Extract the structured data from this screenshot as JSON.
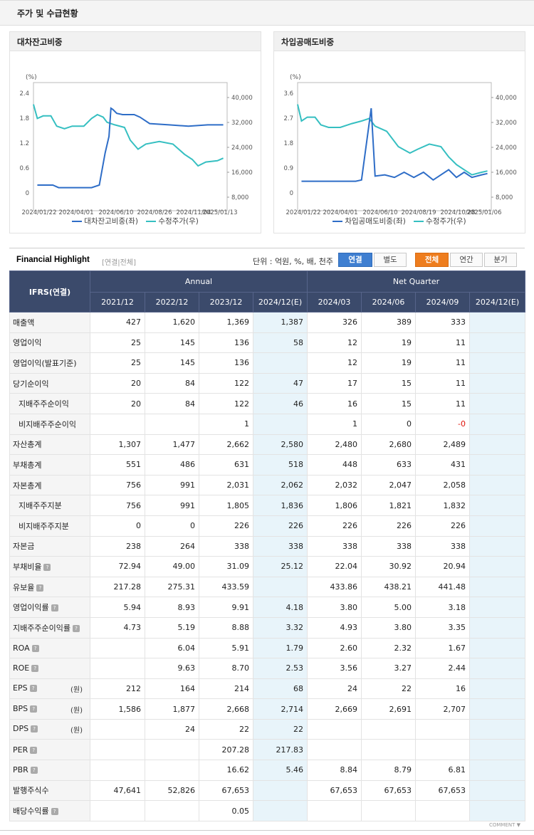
{
  "header": {
    "title": "주가 및 수급현황"
  },
  "left_chart": {
    "title": "대차잔고비중",
    "y_left_unit": "(%)",
    "y_left_ticks": [
      "2.4",
      "1.8",
      "1.2",
      "0.6",
      "0"
    ],
    "y_right_ticks": [
      "40,000",
      "32,000",
      "24,000",
      "16,000",
      "8,000"
    ],
    "x_ticks": [
      "2024/01/22",
      "2024/04/01",
      "2024/06/10",
      "2024/08/26",
      "2024/11/04",
      "2025/01/13"
    ],
    "legend": [
      "대차잔고비중(좌)",
      "수정주가(우)"
    ],
    "colors": {
      "ratio": "#2e6dc7",
      "price": "#35bfc1"
    }
  },
  "right_chart": {
    "title": "차입공매도비중",
    "y_left_unit": "(%)",
    "y_left_ticks": [
      "3.6",
      "2.7",
      "1.8",
      "0.9",
      "0"
    ],
    "y_right_ticks": [
      "40,000",
      "32,000",
      "24,000",
      "16,000",
      "8,000"
    ],
    "x_ticks": [
      "2024/01/22",
      "2024/04/01",
      "2024/06/10",
      "2024/08/19",
      "2024/10/28",
      "2025/01/06"
    ],
    "legend": [
      "차입공매도비중(좌)",
      "수정주가(우)"
    ],
    "colors": {
      "ratio": "#2e6dc7",
      "price": "#35bfc1"
    }
  },
  "highlight": {
    "title": "Financial Highlight",
    "subtitle": "[연결|전체]",
    "unit": "단위 : 억원, %, 배, 천주",
    "buttons": {
      "consolidated": "연결",
      "separate": "별도",
      "all": "전체",
      "annual": "연간",
      "quarter": "분기"
    },
    "corner": "IFRS(연결)",
    "group_annual": "Annual",
    "group_quarter": "Net Quarter",
    "columns": [
      "2021/12",
      "2022/12",
      "2023/12",
      "2024/12(E)",
      "2024/03",
      "2024/06",
      "2024/09",
      "2024/12(E)"
    ],
    "rows": [
      {
        "label": "매출액",
        "values": [
          "427",
          "1,620",
          "1,369",
          "1,387",
          "326",
          "389",
          "333",
          ""
        ]
      },
      {
        "label": "영업이익",
        "values": [
          "25",
          "145",
          "136",
          "58",
          "12",
          "19",
          "11",
          ""
        ]
      },
      {
        "label": "영업이익(발표기준)",
        "values": [
          "25",
          "145",
          "136",
          "",
          "12",
          "19",
          "11",
          ""
        ]
      },
      {
        "label": "당기순이익",
        "values": [
          "20",
          "84",
          "122",
          "47",
          "17",
          "15",
          "11",
          ""
        ]
      },
      {
        "label": "지배주주순이익",
        "values": [
          "20",
          "84",
          "122",
          "46",
          "16",
          "15",
          "11",
          ""
        ]
      },
      {
        "label": "비지배주주순이익",
        "values": [
          "",
          "",
          "1",
          "",
          "1",
          "0",
          "-0",
          ""
        ]
      },
      {
        "label": "자산총계",
        "values": [
          "1,307",
          "1,477",
          "2,662",
          "2,580",
          "2,480",
          "2,680",
          "2,489",
          ""
        ]
      },
      {
        "label": "부채총계",
        "values": [
          "551",
          "486",
          "631",
          "518",
          "448",
          "633",
          "431",
          ""
        ]
      },
      {
        "label": "자본총계",
        "values": [
          "756",
          "991",
          "2,031",
          "2,062",
          "2,032",
          "2,047",
          "2,058",
          ""
        ]
      },
      {
        "label": "지배주주지분",
        "values": [
          "756",
          "991",
          "1,805",
          "1,836",
          "1,806",
          "1,821",
          "1,832",
          ""
        ]
      },
      {
        "label": "비지배주주지분",
        "values": [
          "0",
          "0",
          "226",
          "226",
          "226",
          "226",
          "226",
          ""
        ]
      },
      {
        "label": "자본금",
        "values": [
          "238",
          "264",
          "338",
          "338",
          "338",
          "338",
          "338",
          ""
        ]
      },
      {
        "label": "부채비율",
        "values": [
          "72.94",
          "49.00",
          "31.09",
          "25.12",
          "22.04",
          "30.92",
          "20.94",
          ""
        ]
      },
      {
        "label": "유보율",
        "values": [
          "217.28",
          "275.31",
          "433.59",
          "",
          "433.86",
          "438.21",
          "441.48",
          ""
        ]
      },
      {
        "label": "영업이익률",
        "values": [
          "5.94",
          "8.93",
          "9.91",
          "4.18",
          "3.80",
          "5.00",
          "3.18",
          ""
        ]
      },
      {
        "label": "지배주주순이익률",
        "values": [
          "4.73",
          "5.19",
          "8.88",
          "3.32",
          "4.93",
          "3.80",
          "3.35",
          ""
        ]
      },
      {
        "label": "ROA",
        "values": [
          "",
          "6.04",
          "5.91",
          "1.79",
          "2.60",
          "2.32",
          "1.67",
          ""
        ]
      },
      {
        "label": "ROE",
        "values": [
          "",
          "9.63",
          "8.70",
          "2.53",
          "3.56",
          "3.27",
          "2.44",
          ""
        ]
      },
      {
        "label": "EPS",
        "unit": "(원)",
        "values": [
          "212",
          "164",
          "214",
          "68",
          "24",
          "22",
          "16",
          ""
        ]
      },
      {
        "label": "BPS",
        "unit": "(원)",
        "values": [
          "1,586",
          "1,877",
          "2,668",
          "2,714",
          "2,669",
          "2,691",
          "2,707",
          ""
        ]
      },
      {
        "label": "DPS",
        "unit": "(원)",
        "values": [
          "",
          "24",
          "22",
          "22",
          "",
          "",
          "",
          ""
        ]
      },
      {
        "label": "PER",
        "values": [
          "",
          "",
          "207.28",
          "217.83",
          "",
          "",
          "",
          ""
        ]
      },
      {
        "label": "PBR",
        "values": [
          "",
          "",
          "16.62",
          "5.46",
          "8.84",
          "8.79",
          "6.81",
          ""
        ]
      },
      {
        "label": "발행주식수",
        "values": [
          "47,641",
          "52,826",
          "67,653",
          "",
          "67,653",
          "67,653",
          "67,653",
          ""
        ]
      },
      {
        "label": "배당수익률",
        "values": [
          "",
          "",
          "0.05",
          "",
          "",
          "",
          "",
          ""
        ]
      }
    ],
    "comment": "COMMENT ▼"
  }
}
